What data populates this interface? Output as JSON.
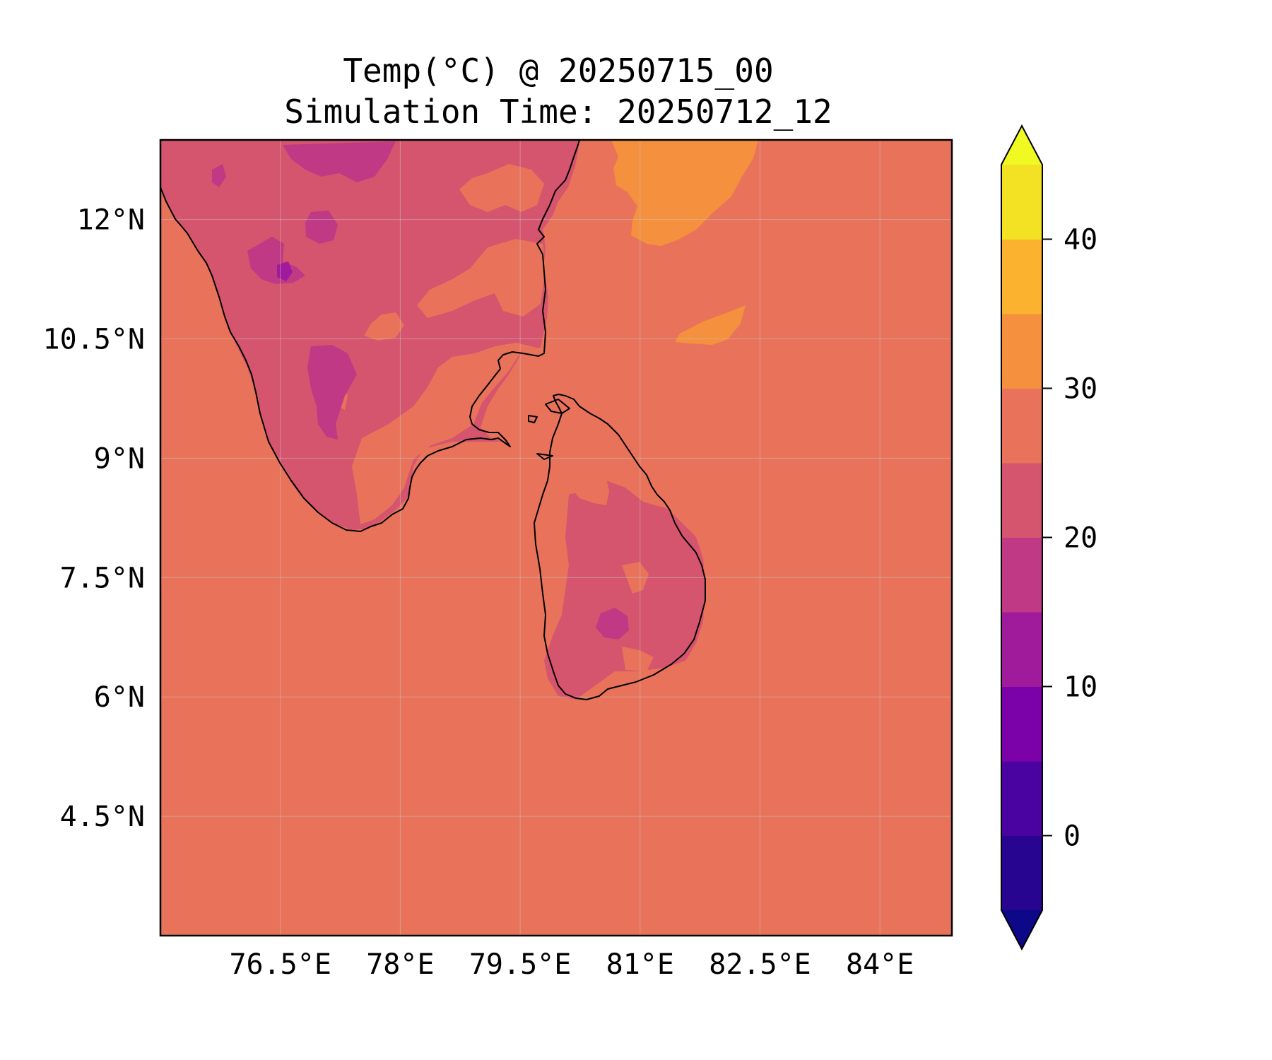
{
  "title": "Temp(°C) @ 20250715_00",
  "subtitle": "Simulation Time: 20250712_12",
  "map": {
    "lon_range": [
      75.0,
      84.9
    ],
    "lat_range": [
      3.0,
      13.0
    ],
    "lon_ticks": [
      {
        "value": 76.5,
        "label": "76.5°E"
      },
      {
        "value": 78.0,
        "label": "78°E"
      },
      {
        "value": 79.5,
        "label": "79.5°E"
      },
      {
        "value": 81.0,
        "label": "81°E"
      },
      {
        "value": 82.5,
        "label": "82.5°E"
      },
      {
        "value": 84.0,
        "label": "84°E"
      }
    ],
    "lat_ticks": [
      {
        "value": 12.0,
        "label": "12°N"
      },
      {
        "value": 10.5,
        "label": "10.5°N"
      },
      {
        "value": 9.0,
        "label": "9°N"
      },
      {
        "value": 7.5,
        "label": "7.5°N"
      },
      {
        "value": 6.0,
        "label": "6°N"
      },
      {
        "value": 4.5,
        "label": "4.5°N"
      }
    ],
    "gridlines": true,
    "regions": [
      "India",
      "Sri Lanka",
      "Bay of Bengal",
      "Indian Ocean"
    ]
  },
  "colorbar": {
    "colormap": "plasma",
    "levels": [
      -5,
      0,
      5,
      10,
      15,
      20,
      25,
      30,
      35,
      40,
      45
    ],
    "colors": [
      "#270591",
      "#4a03a0",
      "#7a02a8",
      "#a01a9c",
      "#bf3984",
      "#d5546e",
      "#e8735a",
      "#f4903e",
      "#fbb32f",
      "#f3e123"
    ],
    "under_color": "#0d0887",
    "over_color": "#f0f921",
    "ticks": [
      {
        "value": 0,
        "label": "0"
      },
      {
        "value": 10,
        "label": "10"
      },
      {
        "value": 20,
        "label": "20"
      },
      {
        "value": 30,
        "label": "30"
      },
      {
        "value": 40,
        "label": "40"
      }
    ],
    "extend": "both"
  },
  "field_colors": {
    "sea": "#e8735a",
    "warm_sea": "#f4903e",
    "land": "#d5546e",
    "cool_land": "#bf3984",
    "coldest": "#a01a9c",
    "coast": "#000000",
    "grid": "#c8c8c8"
  }
}
